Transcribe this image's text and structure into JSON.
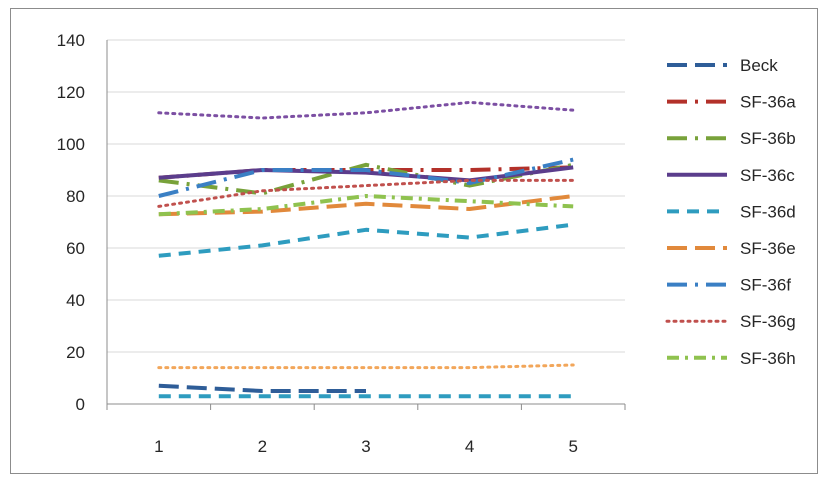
{
  "chart_data": {
    "type": "line",
    "title": "",
    "xlabel": "",
    "ylabel": "",
    "categories": [
      "1",
      "2",
      "3",
      "4",
      "5"
    ],
    "ylim": [
      0,
      140
    ],
    "yticks": [
      "0",
      "20",
      "40",
      "60",
      "80",
      "100",
      "120",
      "140"
    ],
    "grid": "horizontal",
    "legend_position": "right",
    "series": [
      {
        "name": "Beck",
        "values": [
          7,
          5,
          5,
          null,
          null
        ],
        "color": "#2e5d98",
        "dash": "long-dash"
      },
      {
        "name": "SF-36a",
        "values": [
          87,
          90,
          90,
          90,
          91
        ],
        "color": "#b3312a",
        "dash": "long-dash-dot"
      },
      {
        "name": "SF-36b",
        "values": [
          86,
          81,
          92,
          84,
          92
        ],
        "color": "#78a23a",
        "dash": "long-dash-dot"
      },
      {
        "name": "SF-36c",
        "values": [
          87,
          90,
          89,
          86,
          91
        ],
        "color": "#5b3d8c",
        "dash": "solid"
      },
      {
        "name": "SF-36d",
        "values": [
          57,
          61,
          67,
          64,
          69
        ],
        "color": "#2e9cbf",
        "dash": "dash"
      },
      {
        "name": "SF-36e",
        "values": [
          73,
          74,
          77,
          75,
          80
        ],
        "color": "#e1893b",
        "dash": "long-dash"
      },
      {
        "name": "SF-36f",
        "values": [
          80,
          90,
          90,
          85,
          94
        ],
        "color": "#3a7fc4",
        "dash": "long-dash-dot"
      },
      {
        "name": "SF-36g",
        "values": [
          76,
          82,
          84,
          86,
          86
        ],
        "color": "#c0504d",
        "dash": "dot"
      },
      {
        "name": "SF-36h",
        "values": [
          73,
          75,
          80,
          78,
          76
        ],
        "color": "#8fc24f",
        "dash": "dash-dot"
      },
      {
        "name": "",
        "values": [
          112,
          110,
          112,
          116,
          113
        ],
        "color": "#7c4fa3",
        "dash": "dot"
      },
      {
        "name": "",
        "values": [
          14,
          14,
          14,
          14,
          15
        ],
        "color": "#f2a65a",
        "dash": "dot"
      },
      {
        "name": "",
        "values": [
          3,
          3,
          3,
          3,
          3
        ],
        "color": "#2e9cbf",
        "dash": "dash"
      }
    ]
  }
}
